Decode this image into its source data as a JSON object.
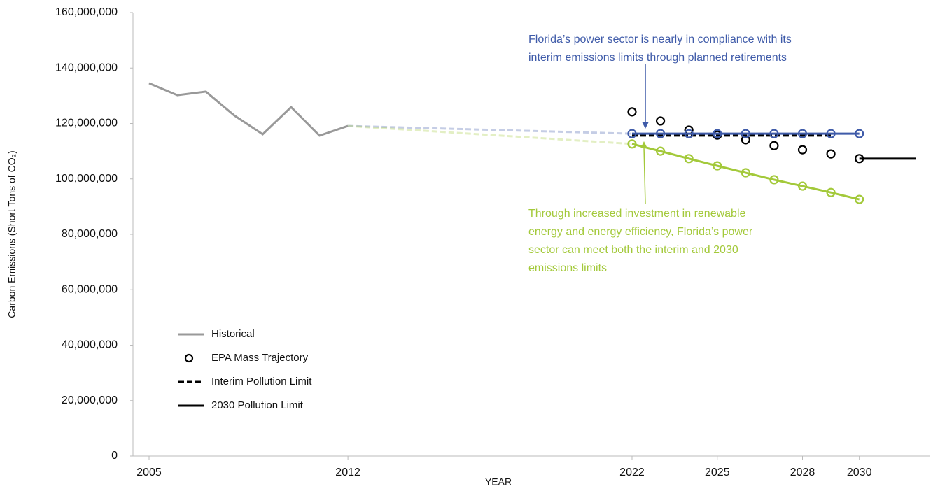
{
  "chart_data": {
    "type": "line",
    "ylabel": "Carbon Emissions  (Short Tons of CO₂)",
    "xlabel": "YEAR",
    "xlim": [
      2004.5,
      2032.25
    ],
    "xticks": [
      2005,
      2012,
      2022,
      2025,
      2028,
      2030
    ],
    "ylim": [
      0,
      160000000
    ],
    "yticks": [
      0,
      {
        "value": 20000000,
        "label": "20,000,000"
      },
      {
        "value": 40000000,
        "label": "40,000,000"
      },
      {
        "value": 60000000,
        "label": "60,000,000"
      },
      {
        "value": 80000000,
        "label": "80,000,000"
      },
      {
        "value": 100000000,
        "label": "100,000,000"
      },
      {
        "value": 120000000,
        "label": "120,000,000"
      },
      {
        "value": 140000000,
        "label": "140,000,000"
      },
      {
        "value": 160000000,
        "label": "160,000,000"
      }
    ],
    "series": [
      {
        "name": "Historical",
        "color": "#999999",
        "style": "line",
        "x": [
          2005,
          2006,
          2007,
          2008,
          2009,
          2010,
          2011,
          2012
        ],
        "values": [
          134500000,
          130200000,
          131500000,
          122900000,
          116100000,
          125900000,
          115600000,
          119100000
        ]
      },
      {
        "name": "EPA Mass Trajectory",
        "color": "#000000",
        "style": "markers",
        "x": [
          2022,
          2023,
          2024,
          2025,
          2026,
          2027,
          2028,
          2029,
          2030
        ],
        "values": [
          124200000,
          120900000,
          117600000,
          115800000,
          114100000,
          112000000,
          110500000,
          109000000,
          107300000
        ]
      },
      {
        "name": "Interim Pollution Limit",
        "color": "#000000",
        "style": "dashed",
        "x": [
          2022,
          2029
        ],
        "values": [
          115600000,
          115600000
        ]
      },
      {
        "name": "2030 Pollution Limit",
        "color": "#000000",
        "style": "line",
        "x": [
          2030,
          2032
        ],
        "values": [
          107300000,
          107300000
        ]
      },
      {
        "color": "#3f5ba9",
        "style": "projection",
        "x": [
          2012,
          2022,
          2023,
          2024,
          2025,
          2026,
          2027,
          2028,
          2029,
          2030
        ],
        "values": [
          119100000,
          116300000,
          116300000,
          116300000,
          116300000,
          116300000,
          116300000,
          116300000,
          116300000,
          116300000
        ]
      },
      {
        "color": "#a3c93a",
        "style": "projection",
        "x": [
          2012,
          2022,
          2023,
          2024,
          2025,
          2026,
          2027,
          2028,
          2029,
          2030
        ],
        "values": [
          119100000,
          112600000,
          110000000,
          107300000,
          104700000,
          102200000,
          99700000,
          97400000,
          95100000,
          92600000
        ]
      }
    ],
    "annotations": [
      {
        "color": "#3f5ba9",
        "lines": [
          "Florida’s power sector is nearly in compliance with its",
          "interim emissions limits through planned retirements"
        ]
      },
      {
        "color": "#a3c93a",
        "lines": [
          "Through increased investment in renewable",
          "energy and energy efficiency, Florida’s power",
          "sector can meet both the interim and 2030",
          "emissions limits"
        ]
      }
    ]
  }
}
